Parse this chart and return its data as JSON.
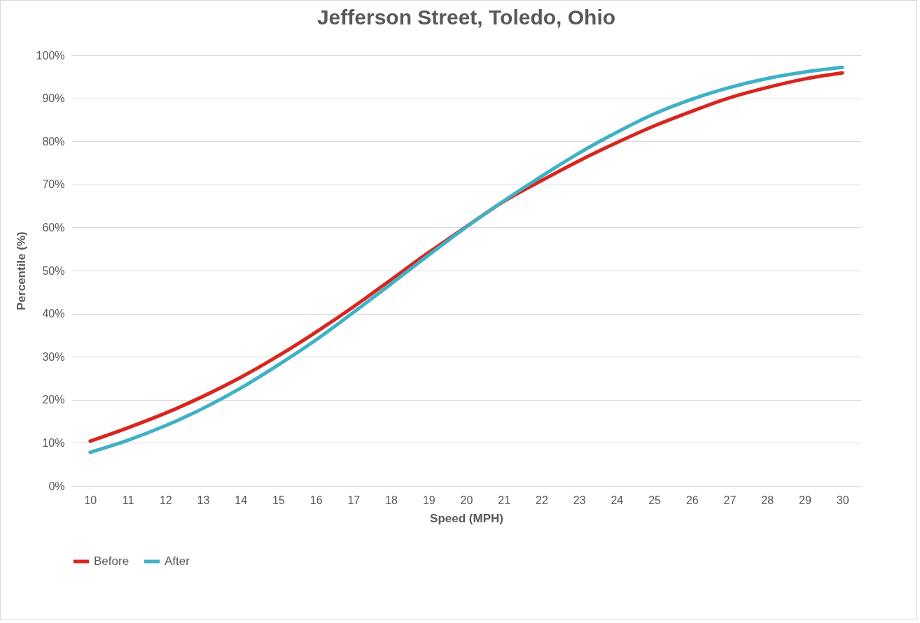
{
  "chart_data": {
    "type": "line",
    "title": "Jefferson Street, Toledo, Ohio",
    "xlabel": "Speed (MPH)",
    "ylabel": "Percentile (%)",
    "categories": [
      "10",
      "11",
      "12",
      "13",
      "14",
      "15",
      "16",
      "17",
      "18",
      "19",
      "20",
      "21",
      "22",
      "23",
      "24",
      "25",
      "26",
      "27",
      "28",
      "29",
      "30"
    ],
    "series": [
      {
        "name": "Before",
        "color": "#d7261e",
        "values": [
          10.4,
          13.5,
          16.9,
          20.8,
          25.2,
          30.2,
          35.7,
          41.6,
          47.9,
          54.2,
          60.2,
          66.1,
          70.9,
          75.5,
          79.7,
          83.6,
          87.0,
          90.1,
          92.5,
          94.5,
          95.9
        ]
      },
      {
        "name": "After",
        "color": "#3fb1c6",
        "values": [
          7.8,
          10.6,
          14.0,
          18.0,
          22.7,
          28.1,
          33.9,
          40.3,
          46.9,
          53.6,
          60.1,
          66.2,
          71.9,
          77.3,
          82.1,
          86.4,
          89.8,
          92.5,
          94.6,
          96.1,
          97.2
        ]
      }
    ],
    "ylim": [
      0,
      100
    ],
    "yticks": [
      {
        "value": 0,
        "label": "0%"
      },
      {
        "value": 10,
        "label": "10%"
      },
      {
        "value": 20,
        "label": "20%"
      },
      {
        "value": 30,
        "label": "30%"
      },
      {
        "value": 40,
        "label": "40%"
      },
      {
        "value": 50,
        "label": "50%"
      },
      {
        "value": 60,
        "label": "60%"
      },
      {
        "value": 70,
        "label": "70%"
      },
      {
        "value": 80,
        "label": "80%"
      },
      {
        "value": 90,
        "label": "90%"
      },
      {
        "value": 100,
        "label": "100%"
      }
    ],
    "grid": "y",
    "legend": "bottom",
    "marker": "none",
    "line_style": "solid"
  }
}
